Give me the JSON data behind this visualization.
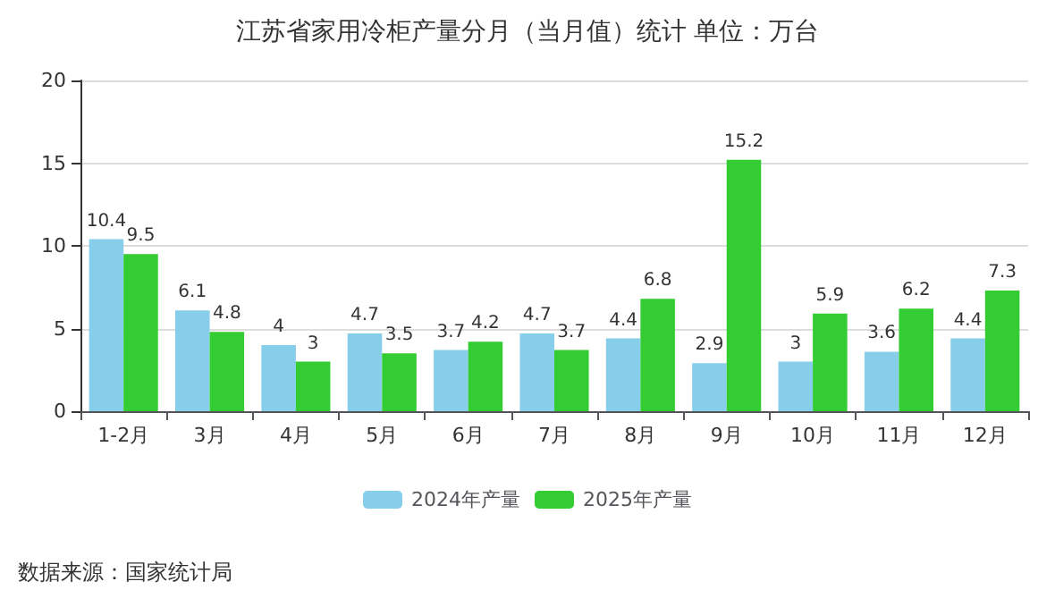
{
  "chart_data": {
    "type": "bar",
    "title": "江苏省家用冷柜产量分月（当月值）统计 单位：万台",
    "categories": [
      "1-2月",
      "3月",
      "4月",
      "5月",
      "6月",
      "7月",
      "8月",
      "9月",
      "10月",
      "11月",
      "12月"
    ],
    "series": [
      {
        "name": "2024年产量",
        "color": "#87ceeb",
        "values": [
          10.4,
          6.1,
          4,
          4.7,
          3.7,
          4.7,
          4.4,
          2.9,
          3,
          3.6,
          4.4
        ]
      },
      {
        "name": "2025年产量",
        "color": "#33cc33",
        "values": [
          9.5,
          4.8,
          3,
          3.5,
          4.2,
          3.7,
          6.8,
          15.2,
          5.9,
          6.2,
          7.3
        ]
      }
    ],
    "ylim": [
      0,
      20
    ],
    "yticks": [
      0,
      5,
      10,
      15,
      20
    ],
    "grid": "y",
    "legend": "bottom",
    "data_labels": true,
    "annotations": [
      "数据来源：国家统计局"
    ]
  }
}
